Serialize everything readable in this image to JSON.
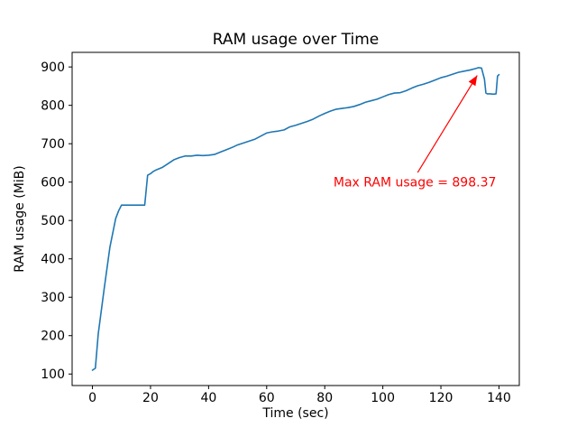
{
  "chart_data": {
    "type": "line",
    "title": "RAM usage over Time",
    "xlabel": "Time (sec)",
    "ylabel": "RAM usage (MiB)",
    "x_ticks": [
      0,
      20,
      40,
      60,
      80,
      100,
      120,
      140
    ],
    "y_ticks": [
      100,
      200,
      300,
      400,
      500,
      600,
      700,
      800,
      900
    ],
    "xlim": [
      -7,
      147
    ],
    "ylim": [
      70,
      938
    ],
    "grid": false,
    "legend": "none",
    "line_color": "#1f77b4",
    "series": [
      {
        "name": "RAM usage",
        "x": [
          0,
          1,
          2,
          4,
          6,
          8,
          9,
          10,
          12,
          14,
          16,
          18,
          19,
          20,
          21,
          22,
          24,
          26,
          28,
          30,
          32,
          34,
          36,
          38,
          40,
          42,
          44,
          46,
          48,
          50,
          52,
          54,
          56,
          58,
          60,
          62,
          64,
          66,
          68,
          70,
          72,
          74,
          76,
          78,
          80,
          82,
          84,
          86,
          88,
          90,
          92,
          94,
          96,
          98,
          100,
          102,
          104,
          106,
          108,
          110,
          112,
          114,
          116,
          118,
          120,
          122,
          124,
          126,
          128,
          130,
          132,
          133,
          134,
          135,
          135.5,
          136,
          137,
          138,
          139,
          139.5,
          140
        ],
        "y": [
          110,
          115,
          205,
          320,
          430,
          505,
          525,
          540,
          540,
          540,
          540,
          540,
          618,
          622,
          628,
          632,
          638,
          648,
          658,
          664,
          668,
          668,
          670,
          669,
          670,
          672,
          678,
          684,
          690,
          697,
          702,
          707,
          712,
          720,
          728,
          731,
          733,
          736,
          744,
          748,
          753,
          758,
          764,
          772,
          779,
          785,
          790,
          792,
          794,
          797,
          802,
          808,
          812,
          816,
          822,
          828,
          832,
          833,
          838,
          845,
          851,
          855,
          860,
          866,
          872,
          876,
          881,
          886,
          889,
          892,
          896,
          898.37,
          897,
          868,
          832,
          830,
          830,
          829,
          830,
          876,
          880
        ]
      }
    ],
    "max_value": 898.37,
    "annotation": {
      "text": "Max RAM usage = 898.37",
      "color": "#ff0000",
      "text_x": 83,
      "text_y": 600,
      "arrow_from": [
        112,
        625
      ],
      "arrow_to": [
        132.5,
        878
      ]
    }
  }
}
